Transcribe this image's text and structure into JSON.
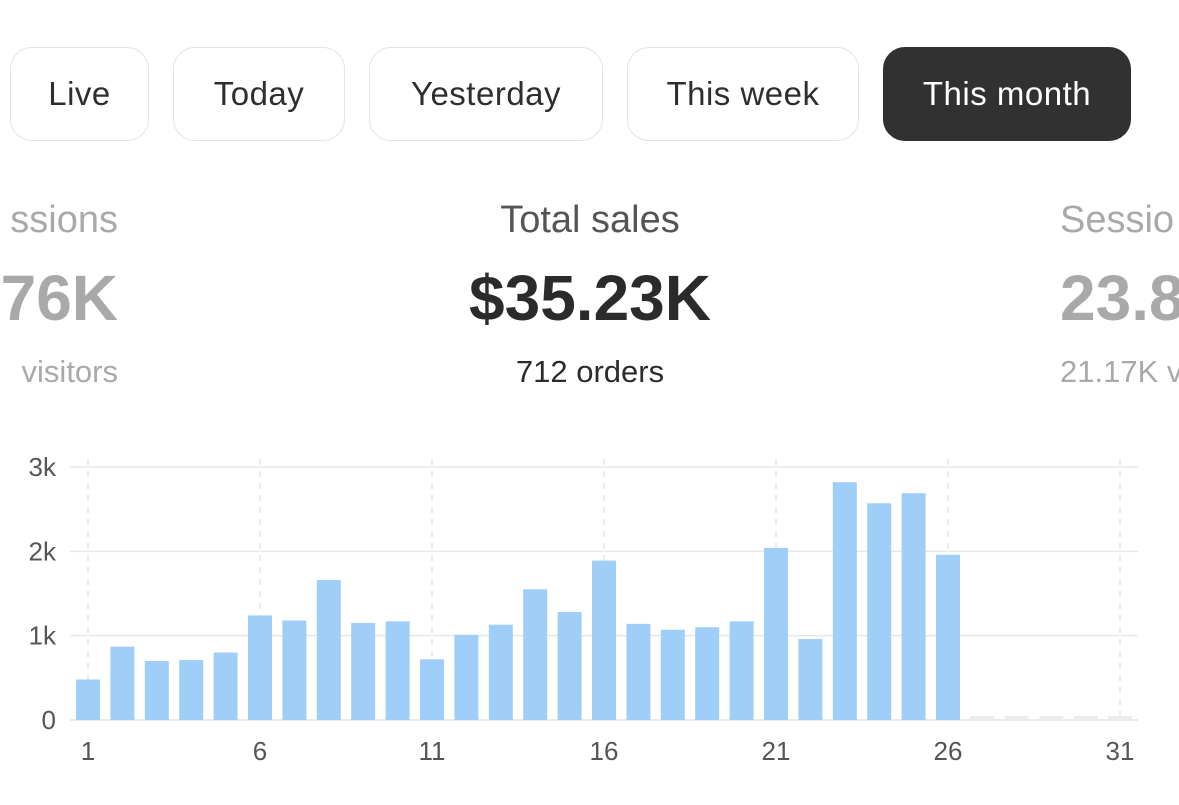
{
  "tabs": [
    {
      "label": "Live",
      "active": false
    },
    {
      "label": "Today",
      "active": false
    },
    {
      "label": "Yesterday",
      "active": false
    },
    {
      "label": "This week",
      "active": false
    },
    {
      "label": "This month",
      "active": true
    }
  ],
  "metrics": {
    "left": {
      "label": "ssions",
      "value": "76K",
      "sub": "visitors"
    },
    "center": {
      "label": "Total sales",
      "value": "$35.23K",
      "sub": "712 orders"
    },
    "right": {
      "label": "Sessio",
      "value": "23.8",
      "sub": "21.17K v"
    }
  },
  "colors": {
    "bar": "#9fcff8",
    "future_bar": "#ececec",
    "active_tab": "#313131",
    "faded_text": "#a9a9a9"
  },
  "chart_data": {
    "type": "bar",
    "categories": [
      1,
      2,
      3,
      4,
      5,
      6,
      7,
      8,
      9,
      10,
      11,
      12,
      13,
      14,
      15,
      16,
      17,
      18,
      19,
      20,
      21,
      22,
      23,
      24,
      25,
      26,
      27,
      28,
      29,
      30,
      31
    ],
    "values": [
      480,
      870,
      700,
      710,
      800,
      1240,
      1180,
      1660,
      1150,
      1170,
      720,
      1010,
      1130,
      1550,
      1280,
      1890,
      1140,
      1070,
      1100,
      1170,
      2040,
      960,
      2820,
      2570,
      2690,
      1960,
      null,
      null,
      null,
      null,
      null
    ],
    "x_tick_labels": [
      "1",
      "6",
      "11",
      "16",
      "21",
      "26",
      "31"
    ],
    "y_tick_labels": [
      "0",
      "1k",
      "2k",
      "3k"
    ],
    "y_ticks": [
      0,
      1000,
      2000,
      3000
    ],
    "ylim": [
      0,
      3000
    ],
    "grid": true,
    "title": "",
    "xlabel": "",
    "ylabel": ""
  }
}
